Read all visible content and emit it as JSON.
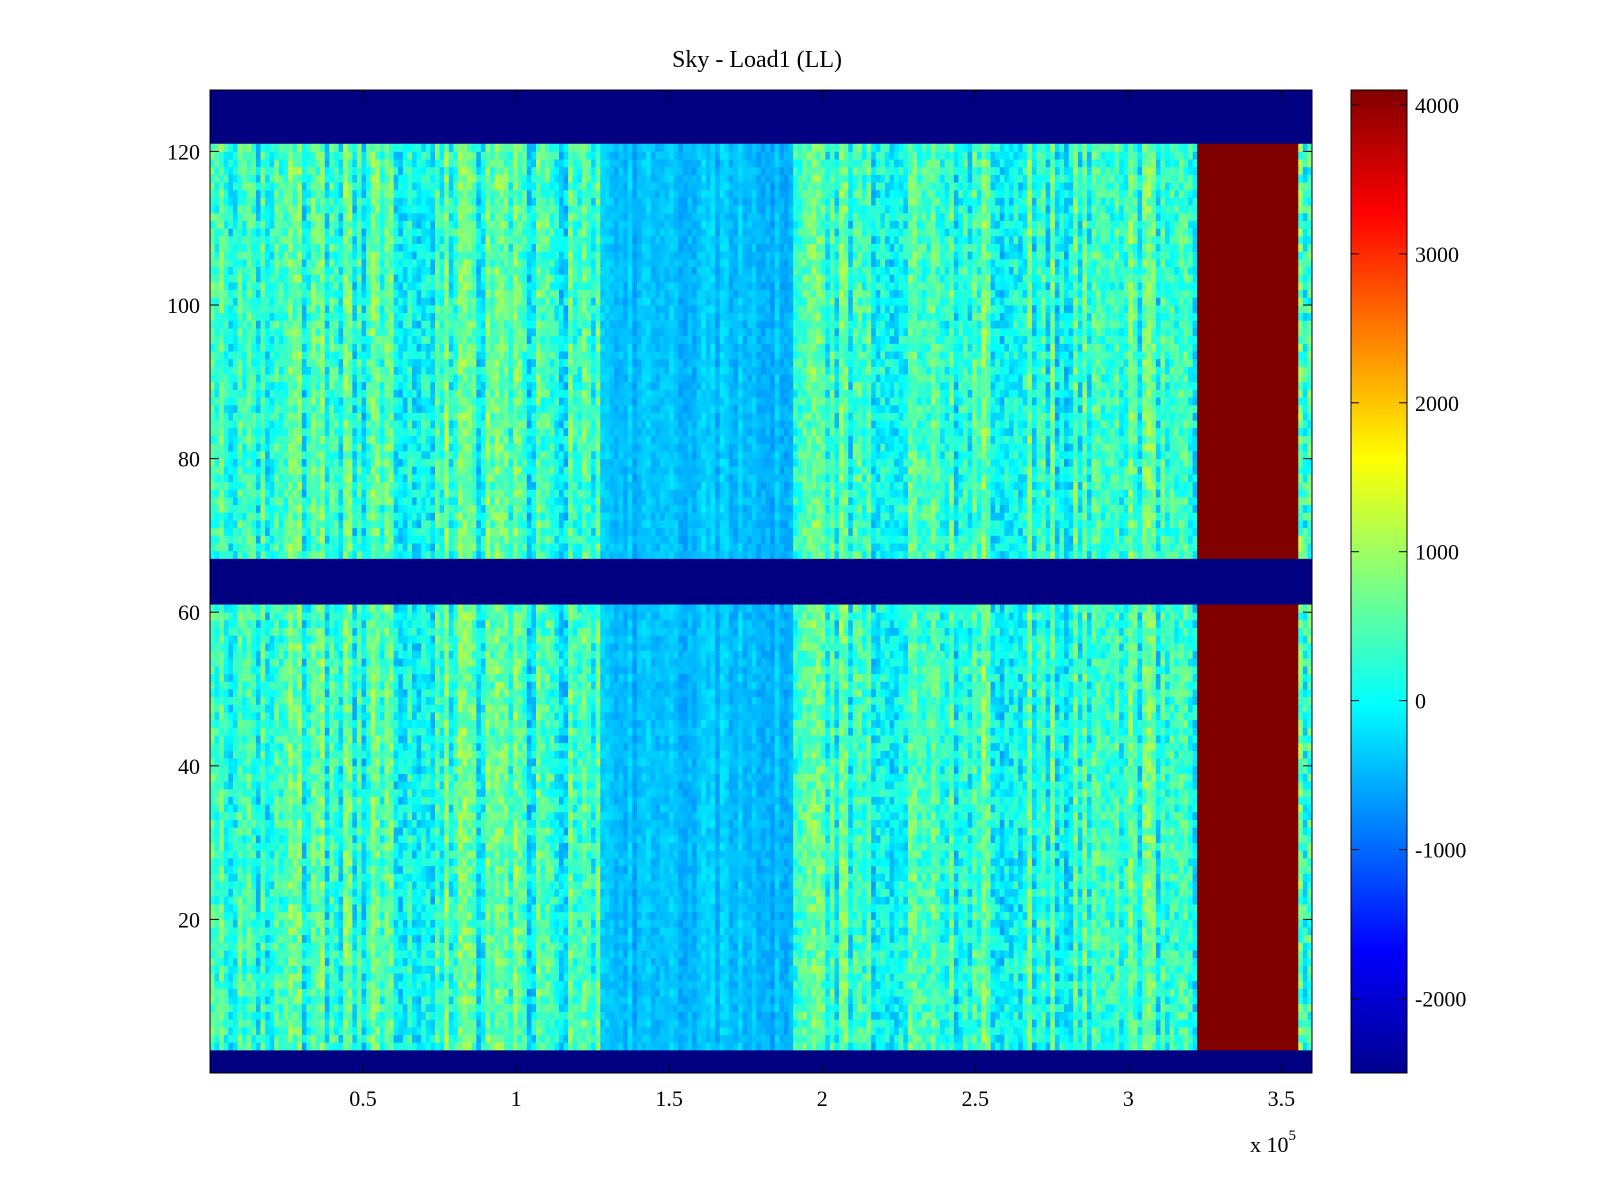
{
  "chart_data": {
    "type": "heatmap",
    "title": "Sky - Load1 (LL)",
    "xlabel": "",
    "ylabel": "",
    "xlim": [
      0,
      360000
    ],
    "ylim": [
      0,
      128
    ],
    "x_ticks": [
      {
        "value": 50000,
        "label": "0.5"
      },
      {
        "value": 100000,
        "label": "1"
      },
      {
        "value": 150000,
        "label": "1.5"
      },
      {
        "value": 200000,
        "label": "2"
      },
      {
        "value": 250000,
        "label": "2.5"
      },
      {
        "value": 300000,
        "label": "3"
      },
      {
        "value": 350000,
        "label": "3.5"
      }
    ],
    "x_exponent_label": "x 10",
    "x_exponent_power": "5",
    "y_ticks": [
      {
        "value": 20,
        "label": "20"
      },
      {
        "value": 40,
        "label": "40"
      },
      {
        "value": 60,
        "label": "60"
      },
      {
        "value": 80,
        "label": "80"
      },
      {
        "value": 100,
        "label": "100"
      },
      {
        "value": 120,
        "label": "120"
      }
    ],
    "colorbar": {
      "colormap": "jet",
      "range": [
        -2500,
        4100
      ],
      "ticks": [
        {
          "value": 4000,
          "label": "4000"
        },
        {
          "value": 3000,
          "label": "3000"
        },
        {
          "value": 2000,
          "label": "2000"
        },
        {
          "value": 1000,
          "label": "1000"
        },
        {
          "value": 0,
          "label": "0"
        },
        {
          "value": -1000,
          "label": "-1000"
        },
        {
          "value": -2000,
          "label": "-2000"
        }
      ]
    },
    "empty_row_bands": [
      [
        0,
        3
      ],
      [
        61,
        67
      ],
      [
        121,
        128
      ]
    ],
    "column_regions": [
      {
        "x_start": 0,
        "x_end": 128000,
        "level": 300,
        "spread": 900
      },
      {
        "x_start": 128000,
        "x_end": 190000,
        "level": -450,
        "spread": 300
      },
      {
        "x_start": 190000,
        "x_end": 322000,
        "level": 300,
        "spread": 900
      },
      {
        "x_start": 322000,
        "x_end": 355000,
        "level": 4100,
        "spread": 0
      },
      {
        "x_start": 355000,
        "x_end": 360000,
        "level": 800,
        "spread": 1200
      }
    ],
    "empty_value": -2500
  }
}
